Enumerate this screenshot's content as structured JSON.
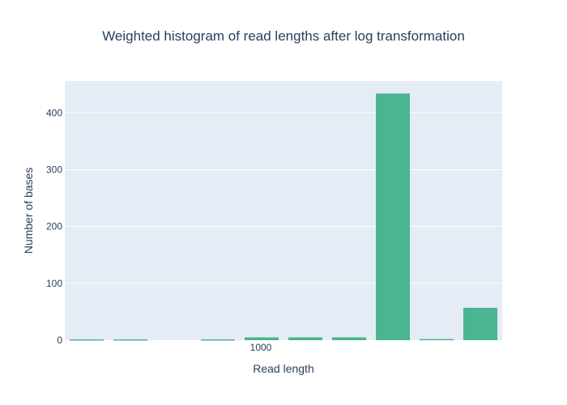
{
  "chart_data": {
    "type": "bar",
    "title": "Weighted histogram of read lengths after log transformation",
    "xlabel": "Read length",
    "ylabel": "Number of bases",
    "x_tick_labels": [
      "1000"
    ],
    "y_ticks": [
      0,
      100,
      200,
      300,
      400
    ],
    "ylim": [
      0,
      456
    ],
    "grid": true,
    "series": [
      {
        "values": [
          1,
          1,
          0,
          1,
          5,
          5,
          5,
          434,
          2,
          57
        ]
      }
    ],
    "colors": {
      "bar": "#4bb491",
      "plot_bg": "#e5ecf6",
      "grid": "#ffffff",
      "text": "#2a3f5f"
    }
  }
}
